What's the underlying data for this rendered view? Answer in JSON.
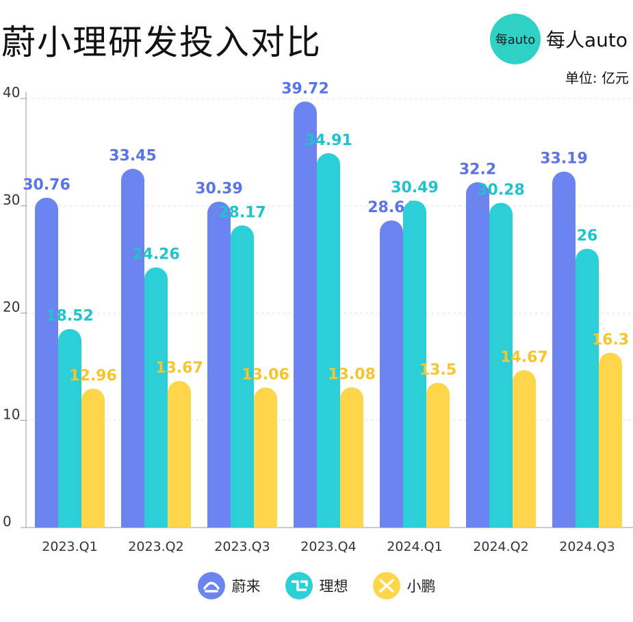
{
  "title": "蔚小理研发投入对比",
  "brand": {
    "circle_text": "每auto",
    "text": "每人auto"
  },
  "unit": "单位: 亿元",
  "colors": {
    "nio": "#6b84ef",
    "li": "#2ccfd6",
    "xpeng": "#ffd54a",
    "nio_label": "#5b74e5",
    "li_label": "#1fc3cb",
    "xpeng_label": "#f5c52e"
  },
  "legend": [
    {
      "label": "蔚来",
      "icon": "nio-logo-icon",
      "color": "#6b84ef"
    },
    {
      "label": "理想",
      "icon": "li-logo-icon",
      "color": "#2ccfd6"
    },
    {
      "label": "小鹏",
      "icon": "xpeng-logo-icon",
      "color": "#ffd54a"
    }
  ],
  "chart_data": {
    "type": "bar",
    "title": "蔚小理研发投入对比",
    "ylabel": "单位: 亿元",
    "categories": [
      "2023.Q1",
      "2023.Q2",
      "2023.Q3",
      "2023.Q4",
      "2024.Q1",
      "2024.Q2",
      "2024.Q3"
    ],
    "yticks": [
      "0",
      "10",
      "20",
      "30",
      "40"
    ],
    "ylim": [
      0,
      40
    ],
    "grid": true,
    "legend_position": "bottom",
    "series": [
      {
        "name": "蔚来",
        "values": [
          30.76,
          33.45,
          30.39,
          39.72,
          28.64,
          32.2,
          33.19
        ],
        "labels": [
          "30.76",
          "33.45",
          "30.39",
          "39.72",
          "28.64",
          "32.2",
          "33.19"
        ]
      },
      {
        "name": "理想",
        "values": [
          18.52,
          24.26,
          28.17,
          34.91,
          30.49,
          30.28,
          26
        ],
        "labels": [
          "18.52",
          "24.26",
          "28.17",
          "34.91",
          "30.49",
          "30.28",
          "26"
        ]
      },
      {
        "name": "小鹏",
        "values": [
          12.96,
          13.67,
          13.06,
          13.08,
          13.5,
          14.67,
          16.3
        ],
        "labels": [
          "12.96",
          "13.67",
          "13.06",
          "13.08",
          "13.5",
          "14.67",
          "16.3"
        ]
      }
    ]
  }
}
